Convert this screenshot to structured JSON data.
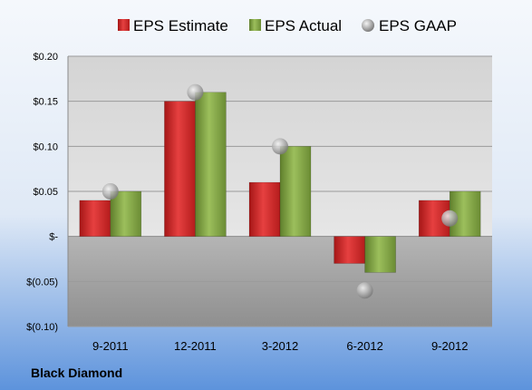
{
  "company": "Black Diamond",
  "colors": {
    "estimate": "#d42a2a",
    "actual": "#7fa044",
    "gaap": "#b9b9b9",
    "background_top": "#f2f6fb",
    "background_bottom": "#6e9fe0",
    "plot_positive": "#d9d9d9",
    "plot_negative": "#a0a0a0"
  },
  "chart_data": {
    "type": "bar",
    "categories": [
      "9-2011",
      "12-2011",
      "3-2012",
      "6-2012",
      "9-2012"
    ],
    "series": [
      {
        "name": "EPS Estimate",
        "type": "bar",
        "values": [
          0.04,
          0.15,
          0.06,
          -0.03,
          0.04
        ]
      },
      {
        "name": "EPS Actual",
        "type": "bar",
        "values": [
          0.05,
          0.16,
          0.1,
          -0.04,
          0.05
        ]
      },
      {
        "name": "EPS GAAP",
        "type": "scatter",
        "values": [
          0.05,
          0.16,
          0.1,
          -0.06,
          0.02
        ]
      }
    ],
    "y_tick_values": [
      0.2,
      0.15,
      0.1,
      0.05,
      0,
      -0.05,
      -0.1
    ],
    "y_tick_labels": [
      "$0.20",
      "$0.15",
      "$0.10",
      "$0.05",
      "$-",
      "$(0.05)",
      "$(0.10)"
    ],
    "ylim": [
      -0.1,
      0.2
    ],
    "legend_position": "top",
    "grid": true,
    "title": "",
    "xlabel": "",
    "ylabel": ""
  }
}
